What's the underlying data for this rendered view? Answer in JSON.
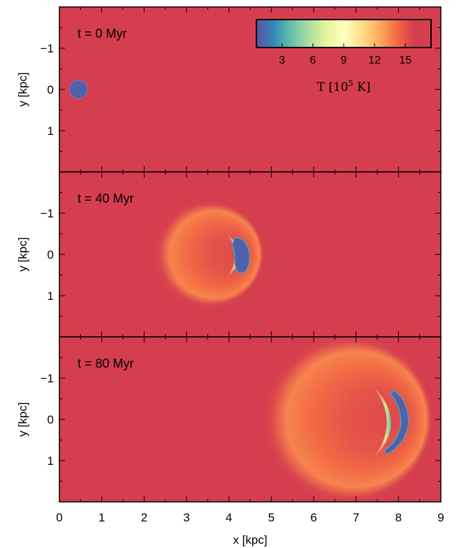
{
  "chart_data": {
    "type": "heatmap",
    "x_axis": {
      "label": "x [kpc]",
      "lim": [
        0,
        9
      ],
      "ticks": [
        0,
        1,
        2,
        3,
        4,
        5,
        6,
        7,
        8,
        9
      ]
    },
    "y_axis": {
      "label": "y [kpc]",
      "lim": [
        -2,
        2
      ],
      "inverted": true,
      "ticks": [
        -1,
        0,
        1
      ],
      "tick_labels": [
        "−1",
        "0",
        "1"
      ]
    },
    "colorbar": {
      "label_main": "T",
      "label_units_prefix": "[10",
      "label_units_exp": "5",
      "label_units_suffix": " K]",
      "vmin": 0.5,
      "vmax": 17.5,
      "ticks": [
        3,
        6,
        9,
        12,
        15
      ],
      "colormap": "Spectral_r",
      "placement": "top-right of first panel"
    },
    "panels": [
      {
        "title": "t = 0 Myr",
        "ambient_T": 17,
        "cloud": {
          "center_x": 0.45,
          "center_y": 0.0,
          "radius": 0.22,
          "T": 1
        }
      },
      {
        "title": "t = 40 Myr",
        "ambient_T": 17,
        "cloud": {
          "center_x": 4.3,
          "center_y": 0.0,
          "extent_y": [
            -0.4,
            0.45
          ],
          "T": 1
        },
        "wake": {
          "center_x": 3.5,
          "radius": 1.35,
          "T_range": [
            12,
            16
          ]
        }
      },
      {
        "title": "t = 80 Myr",
        "ambient_T": 17,
        "cloud": {
          "center_x": 8.0,
          "center_y": 0.0,
          "extent_y": [
            -0.7,
            0.85
          ],
          "T": 1
        },
        "wake": {
          "center_x": 6.75,
          "radius": 2.1,
          "T_range": [
            10,
            16
          ]
        }
      }
    ]
  },
  "colors": {
    "ambient": "#d53e4f",
    "cold_cloud": "#5e4fa2",
    "frame": "#000000"
  }
}
